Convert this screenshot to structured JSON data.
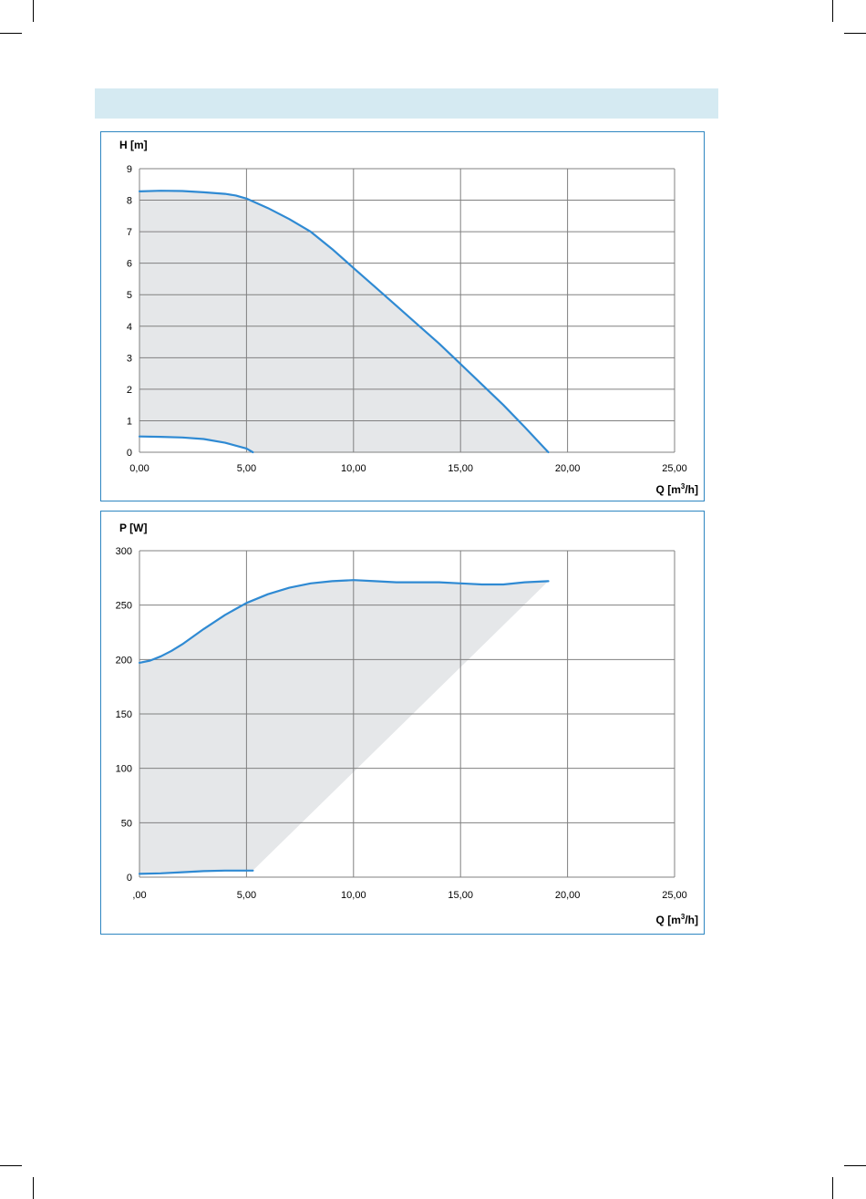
{
  "colors": {
    "curve": "#2f8ad3",
    "fill": "#e5e7e9",
    "grid": "#808080",
    "frame": "#2e86c1",
    "band": "#d5eaf2"
  },
  "chart_data": [
    {
      "type": "area",
      "ylabel": "H [m]",
      "xlabel_main": "Q [m",
      "xlabel_sup": "3",
      "xlabel_end": "/h]",
      "xlim": [
        0,
        25
      ],
      "ylim": [
        0,
        9
      ],
      "x_ticks": [
        0,
        5,
        10,
        15,
        20,
        25
      ],
      "x_tick_labels": [
        "0,00",
        "5,00",
        "10,00",
        "15,00",
        "20,00",
        "25,00"
      ],
      "y_ticks": [
        0,
        1,
        2,
        3,
        4,
        5,
        6,
        7,
        8,
        9
      ],
      "y_tick_labels": [
        "0",
        "1",
        "2",
        "3",
        "4",
        "5",
        "6",
        "7",
        "8",
        "9"
      ],
      "grid": true,
      "series": [
        {
          "role": "max",
          "x": [
            0,
            1,
            2,
            3,
            4,
            4.5,
            5,
            6,
            7,
            8,
            9,
            10,
            11,
            12,
            13,
            14,
            15,
            16,
            17,
            18,
            19.1
          ],
          "y": [
            8.28,
            8.3,
            8.29,
            8.25,
            8.2,
            8.15,
            8.05,
            7.75,
            7.4,
            7.0,
            6.45,
            5.85,
            5.25,
            4.65,
            4.05,
            3.45,
            2.8,
            2.15,
            1.5,
            0.8,
            0.0
          ]
        },
        {
          "role": "min",
          "x": [
            0,
            1,
            2,
            3,
            4,
            5,
            5.3
          ],
          "y": [
            0.5,
            0.49,
            0.47,
            0.42,
            0.3,
            0.12,
            0.0
          ]
        }
      ]
    },
    {
      "type": "area",
      "ylabel": "P [W]",
      "xlabel_main": "Q [m",
      "xlabel_sup": "3",
      "xlabel_end": "/h]",
      "xlim": [
        0,
        25
      ],
      "ylim": [
        0,
        300
      ],
      "x_ticks": [
        0,
        5,
        10,
        15,
        20,
        25
      ],
      "x_tick_labels": [
        ",00",
        "5,00",
        "10,00",
        "15,00",
        "20,00",
        "25,00"
      ],
      "y_ticks": [
        0,
        50,
        100,
        150,
        200,
        250,
        300
      ],
      "y_tick_labels": [
        "0",
        "50",
        "100",
        "150",
        "200",
        "250",
        "300"
      ],
      "grid": true,
      "series": [
        {
          "role": "max",
          "x": [
            0,
            0.5,
            1,
            1.5,
            2,
            3,
            4,
            5,
            6,
            7,
            8,
            9,
            10,
            11,
            12,
            13,
            14,
            15,
            16,
            17,
            18,
            19.1
          ],
          "y": [
            197,
            199,
            203,
            208,
            214,
            228,
            241,
            252,
            260,
            266,
            270,
            272,
            273,
            272,
            271,
            271,
            271,
            270,
            269,
            269,
            271,
            272
          ]
        },
        {
          "role": "min",
          "x": [
            0,
            1,
            2,
            3,
            4,
            5,
            5.3
          ],
          "y": [
            3,
            3.5,
            4.5,
            5.5,
            6,
            6,
            6
          ]
        }
      ]
    }
  ]
}
